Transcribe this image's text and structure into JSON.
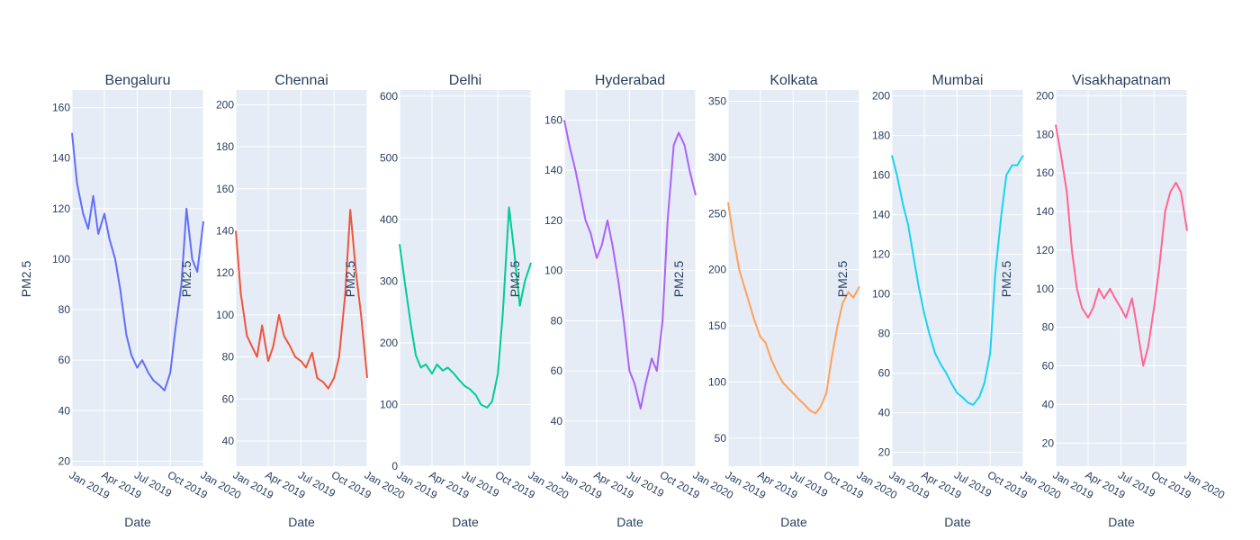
{
  "chart_data": {
    "type": "line",
    "shared_ylabel": "PM2.5",
    "panels": [
      {
        "title": "Bengaluru",
        "color": "#636efa",
        "ylabel": "",
        "xlabel": "Date",
        "xticks": [
          "Jan 2019",
          "Apr 2019",
          "Jul 2019",
          "Oct 2019",
          "Jan 2020"
        ],
        "ylim": [
          18,
          167
        ],
        "yticks": [
          20,
          40,
          60,
          80,
          100,
          120,
          140,
          160
        ],
        "x": [
          "2019-01-01",
          "2019-01-15",
          "2019-02-01",
          "2019-02-15",
          "2019-03-01",
          "2019-03-15",
          "2019-04-01",
          "2019-04-15",
          "2019-05-01",
          "2019-05-15",
          "2019-06-01",
          "2019-06-15",
          "2019-07-01",
          "2019-07-15",
          "2019-08-01",
          "2019-08-15",
          "2019-09-01",
          "2019-09-15",
          "2019-10-01",
          "2019-10-15",
          "2019-11-01",
          "2019-11-15",
          "2019-12-01",
          "2019-12-15",
          "2020-01-01"
        ],
        "y": [
          150,
          130,
          118,
          112,
          125,
          110,
          118,
          108,
          100,
          88,
          70,
          62,
          57,
          60,
          55,
          52,
          50,
          48,
          55,
          72,
          90,
          120,
          100,
          95,
          115
        ]
      },
      {
        "title": "Chennai",
        "color": "#ef553b",
        "ylabel": "PM2.5",
        "xlabel": "Date",
        "xticks": [
          "Jan 2019",
          "Apr 2019",
          "Jul 2019",
          "Oct 2019",
          "Jan 2020"
        ],
        "ylim": [
          28,
          207
        ],
        "yticks": [
          40,
          60,
          80,
          100,
          120,
          140,
          160,
          180,
          200
        ],
        "x": [
          "2019-01-01",
          "2019-01-15",
          "2019-02-01",
          "2019-02-15",
          "2019-03-01",
          "2019-03-15",
          "2019-04-01",
          "2019-04-15",
          "2019-05-01",
          "2019-05-15",
          "2019-06-01",
          "2019-06-15",
          "2019-07-01",
          "2019-07-15",
          "2019-08-01",
          "2019-08-15",
          "2019-09-01",
          "2019-09-15",
          "2019-10-01",
          "2019-10-15",
          "2019-11-01",
          "2019-11-15",
          "2019-12-01",
          "2019-12-15",
          "2020-01-01"
        ],
        "y": [
          140,
          110,
          90,
          85,
          80,
          95,
          78,
          85,
          100,
          90,
          85,
          80,
          78,
          75,
          82,
          70,
          68,
          65,
          70,
          80,
          110,
          150,
          120,
          100,
          70
        ]
      },
      {
        "title": "Delhi",
        "color": "#00cc96",
        "ylabel": "PM2.5",
        "xlabel": "Date",
        "xticks": [
          "Jan 2019",
          "Apr 2019",
          "Jul 2019",
          "Oct 2019",
          "Jan 2020"
        ],
        "ylim": [
          0,
          610
        ],
        "yticks": [
          0,
          100,
          200,
          300,
          400,
          500,
          600
        ],
        "x": [
          "2019-01-01",
          "2019-01-15",
          "2019-02-01",
          "2019-02-15",
          "2019-03-01",
          "2019-03-15",
          "2019-04-01",
          "2019-04-15",
          "2019-05-01",
          "2019-05-15",
          "2019-06-01",
          "2019-06-15",
          "2019-07-01",
          "2019-07-15",
          "2019-08-01",
          "2019-08-15",
          "2019-09-01",
          "2019-09-15",
          "2019-10-01",
          "2019-10-15",
          "2019-11-01",
          "2019-11-15",
          "2019-12-01",
          "2019-12-15",
          "2020-01-01"
        ],
        "y": [
          360,
          300,
          230,
          180,
          160,
          165,
          150,
          165,
          155,
          160,
          150,
          140,
          130,
          125,
          115,
          100,
          95,
          105,
          150,
          250,
          420,
          350,
          260,
          300,
          330
        ]
      },
      {
        "title": "Hyderabad",
        "color": "#ab63fa",
        "ylabel": "PM2.5",
        "xlabel": "Date",
        "xticks": [
          "Jan 2019",
          "Apr 2019",
          "Jul 2019",
          "Oct 2019",
          "Jan 2020"
        ],
        "ylim": [
          22,
          172
        ],
        "yticks": [
          40,
          60,
          80,
          100,
          120,
          140,
          160
        ],
        "x": [
          "2019-01-01",
          "2019-01-15",
          "2019-02-01",
          "2019-02-15",
          "2019-03-01",
          "2019-03-15",
          "2019-04-01",
          "2019-04-15",
          "2019-05-01",
          "2019-05-15",
          "2019-06-01",
          "2019-06-15",
          "2019-07-01",
          "2019-07-15",
          "2019-08-01",
          "2019-08-15",
          "2019-09-01",
          "2019-09-15",
          "2019-10-01",
          "2019-10-15",
          "2019-11-01",
          "2019-11-15",
          "2019-12-01",
          "2019-12-15",
          "2020-01-01"
        ],
        "y": [
          160,
          150,
          140,
          130,
          120,
          115,
          105,
          110,
          120,
          110,
          95,
          80,
          60,
          55,
          45,
          55,
          65,
          60,
          80,
          120,
          150,
          155,
          150,
          140,
          130
        ]
      },
      {
        "title": "Kolkata",
        "color": "#ffa15a",
        "ylabel": "PM2.5",
        "xlabel": "Date",
        "xticks": [
          "Jan 2019",
          "Apr 2019",
          "Jul 2019",
          "Oct 2019",
          "Jan 2020"
        ],
        "ylim": [
          25,
          360
        ],
        "yticks": [
          50,
          100,
          150,
          200,
          250,
          300,
          350
        ],
        "x": [
          "2019-01-01",
          "2019-01-15",
          "2019-02-01",
          "2019-02-15",
          "2019-03-01",
          "2019-03-15",
          "2019-04-01",
          "2019-04-15",
          "2019-05-01",
          "2019-05-15",
          "2019-06-01",
          "2019-06-15",
          "2019-07-01",
          "2019-07-15",
          "2019-08-01",
          "2019-08-15",
          "2019-09-01",
          "2019-09-15",
          "2019-10-01",
          "2019-10-15",
          "2019-11-01",
          "2019-11-15",
          "2019-12-01",
          "2019-12-15",
          "2020-01-01"
        ],
        "y": [
          260,
          230,
          200,
          185,
          170,
          155,
          140,
          135,
          120,
          110,
          100,
          95,
          90,
          85,
          80,
          75,
          72,
          78,
          90,
          120,
          150,
          170,
          180,
          175,
          185
        ]
      },
      {
        "title": "Mumbai",
        "color": "#19d3f3",
        "ylabel": "PM2.5",
        "xlabel": "Date",
        "xticks": [
          "Jan 2019",
          "Apr 2019",
          "Jul 2019",
          "Oct 2019",
          "Jan 2020"
        ],
        "ylim": [
          13,
          203
        ],
        "yticks": [
          20,
          40,
          60,
          80,
          100,
          120,
          140,
          160,
          180,
          200
        ],
        "x": [
          "2019-01-01",
          "2019-01-15",
          "2019-02-01",
          "2019-02-15",
          "2019-03-01",
          "2019-03-15",
          "2019-04-01",
          "2019-04-15",
          "2019-05-01",
          "2019-05-15",
          "2019-06-01",
          "2019-06-15",
          "2019-07-01",
          "2019-07-15",
          "2019-08-01",
          "2019-08-15",
          "2019-09-01",
          "2019-09-15",
          "2019-10-01",
          "2019-10-15",
          "2019-11-01",
          "2019-11-15",
          "2019-12-01",
          "2019-12-15",
          "2020-01-01"
        ],
        "y": [
          170,
          160,
          145,
          135,
          120,
          105,
          90,
          80,
          70,
          65,
          60,
          55,
          50,
          48,
          45,
          44,
          48,
          55,
          70,
          110,
          140,
          160,
          165,
          165,
          170
        ]
      },
      {
        "title": "Visakhapatnam",
        "color": "#ff6692",
        "ylabel": "PM2.5",
        "xlabel": "Date",
        "xticks": [
          "Jan 2019",
          "Apr 2019",
          "Jul 2019",
          "Oct 2019",
          "Jan 2020"
        ],
        "ylim": [
          8,
          203
        ],
        "yticks": [
          20,
          40,
          60,
          80,
          100,
          120,
          140,
          160,
          180,
          200
        ],
        "x": [
          "2019-01-01",
          "2019-01-15",
          "2019-02-01",
          "2019-02-15",
          "2019-03-01",
          "2019-03-15",
          "2019-04-01",
          "2019-04-15",
          "2019-05-01",
          "2019-05-15",
          "2019-06-01",
          "2019-06-15",
          "2019-07-01",
          "2019-07-15",
          "2019-08-01",
          "2019-08-15",
          "2019-09-01",
          "2019-09-15",
          "2019-10-01",
          "2019-10-15",
          "2019-11-01",
          "2019-11-15",
          "2019-12-01",
          "2019-12-15",
          "2020-01-01"
        ],
        "y": [
          185,
          170,
          150,
          120,
          100,
          90,
          85,
          90,
          100,
          95,
          100,
          95,
          90,
          85,
          95,
          80,
          60,
          70,
          90,
          110,
          140,
          150,
          155,
          150,
          130
        ]
      }
    ]
  }
}
